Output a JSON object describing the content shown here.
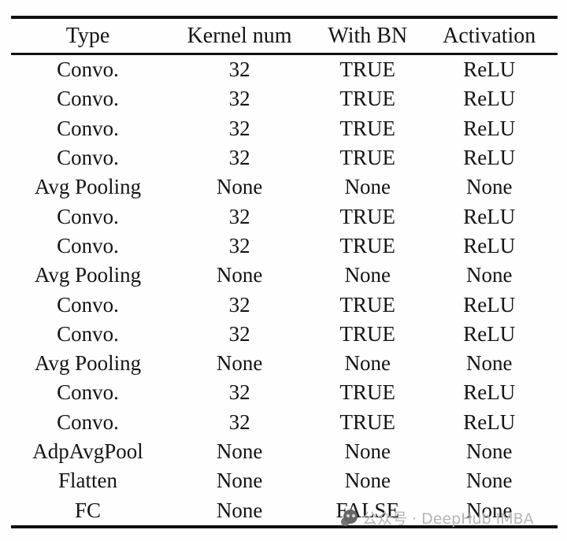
{
  "table": {
    "columns": [
      "Type",
      "Kernel num",
      "With BN",
      "Activation"
    ],
    "rows": [
      [
        "Convo.",
        "32",
        "TRUE",
        "ReLU"
      ],
      [
        "Convo.",
        "32",
        "TRUE",
        "ReLU"
      ],
      [
        "Convo.",
        "32",
        "TRUE",
        "ReLU"
      ],
      [
        "Convo.",
        "32",
        "TRUE",
        "ReLU"
      ],
      [
        "Avg Pooling",
        "None",
        "None",
        "None"
      ],
      [
        "Convo.",
        "32",
        "TRUE",
        "ReLU"
      ],
      [
        "Convo.",
        "32",
        "TRUE",
        "ReLU"
      ],
      [
        "Avg Pooling",
        "None",
        "None",
        "None"
      ],
      [
        "Convo.",
        "32",
        "TRUE",
        "ReLU"
      ],
      [
        "Convo.",
        "32",
        "TRUE",
        "ReLU"
      ],
      [
        "Avg Pooling",
        "None",
        "None",
        "None"
      ],
      [
        "Convo.",
        "32",
        "TRUE",
        "ReLU"
      ],
      [
        "Convo.",
        "32",
        "TRUE",
        "ReLU"
      ],
      [
        "AdpAvgPool",
        "None",
        "None",
        "None"
      ],
      [
        "Flatten",
        "None",
        "None",
        "None"
      ],
      [
        "FC",
        "None",
        "FALSE",
        "None"
      ]
    ]
  },
  "watermark": {
    "text": "公众号 · DeepHub IMBA",
    "icon": "wechat-official-account-logo",
    "color": "#b5b5b5"
  },
  "colors": {
    "background": "#fefefe",
    "text": "#141414",
    "rule": "#101010"
  }
}
